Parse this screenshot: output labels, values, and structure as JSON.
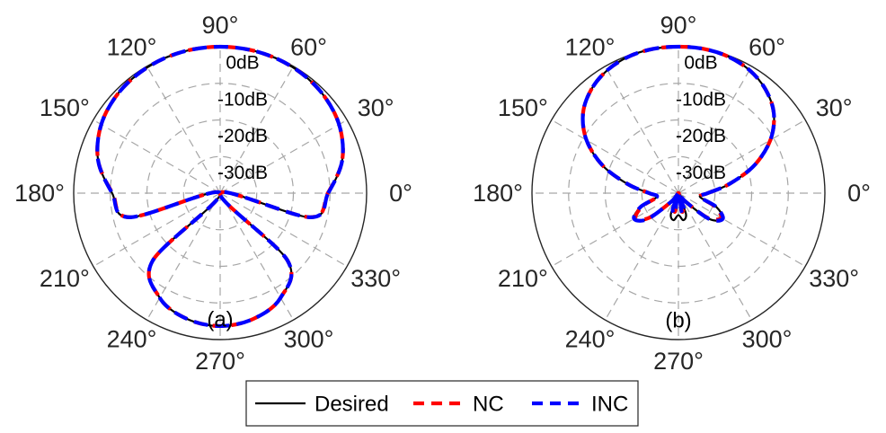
{
  "chart_data": [
    {
      "type": "polar",
      "panel_label": "(a)",
      "theta_unit": "degrees",
      "theta_ticks": [
        0,
        30,
        60,
        90,
        120,
        150,
        180,
        210,
        240,
        270,
        300,
        330
      ],
      "theta_tick_labels": [
        "0°",
        "30°",
        "60°",
        "90°",
        "120°",
        "150°",
        "180°",
        "210°",
        "240°",
        "270°",
        "300°",
        "330°"
      ],
      "r_unit": "dB",
      "rlim": [
        -40,
        0
      ],
      "r_ticks": [
        0,
        -10,
        -20,
        -30
      ],
      "r_tick_labels": [
        "0dB",
        "-10dB",
        "-20dB",
        "-30dB"
      ],
      "grid": true,
      "series": [
        {
          "name": "Desired",
          "theta": [
            0,
            15,
            30,
            45,
            60,
            75,
            90,
            105,
            120,
            135,
            150,
            165,
            180,
            195,
            210,
            225,
            240,
            255,
            270,
            285,
            300,
            315,
            330,
            345
          ],
          "values": [
            -10.5,
            -5.5,
            -2.5,
            -1.0,
            -0.3,
            -0.05,
            0,
            -0.05,
            -0.3,
            -1.0,
            -2.5,
            -5.5,
            -10.5,
            -14.5,
            -40,
            -14.0,
            -7.0,
            -4.5,
            -3.7,
            -4.5,
            -7.0,
            -14.0,
            -40,
            -14.5
          ]
        },
        {
          "name": "NC",
          "theta": [
            0,
            15,
            30,
            45,
            60,
            75,
            90,
            105,
            120,
            135,
            150,
            165,
            180,
            195,
            210,
            225,
            240,
            255,
            270,
            285,
            300,
            315,
            330,
            345
          ],
          "values": [
            -10.6,
            -5.5,
            -2.5,
            -1.0,
            -0.3,
            -0.05,
            0,
            -0.05,
            -0.3,
            -1.0,
            -2.5,
            -5.5,
            -10.6,
            -14.6,
            -40,
            -14.0,
            -7.0,
            -4.5,
            -3.7,
            -4.5,
            -7.0,
            -14.0,
            -40,
            -14.6
          ]
        },
        {
          "name": "INC",
          "theta": [
            0,
            15,
            30,
            45,
            60,
            75,
            90,
            105,
            120,
            135,
            150,
            165,
            180,
            195,
            210,
            225,
            240,
            255,
            270,
            285,
            300,
            315,
            330,
            345
          ],
          "values": [
            -10.5,
            -5.5,
            -2.5,
            -1.0,
            -0.3,
            -0.05,
            0,
            -0.05,
            -0.3,
            -1.0,
            -2.5,
            -5.5,
            -10.5,
            -14.5,
            -40,
            -14.0,
            -7.0,
            -4.5,
            -3.7,
            -4.5,
            -7.0,
            -14.0,
            -40,
            -14.5
          ]
        }
      ]
    },
    {
      "type": "polar",
      "panel_label": "(b)",
      "theta_unit": "degrees",
      "theta_ticks": [
        0,
        30,
        60,
        90,
        120,
        150,
        180,
        210,
        240,
        270,
        300,
        330
      ],
      "theta_tick_labels": [
        "0°",
        "30°",
        "60°",
        "90°",
        "120°",
        "150°",
        "180°",
        "210°",
        "240°",
        "270°",
        "300°",
        "330°"
      ],
      "r_unit": "dB",
      "rlim": [
        -40,
        0
      ],
      "r_ticks": [
        0,
        -10,
        -20,
        -30
      ],
      "r_tick_labels": [
        "0dB",
        "-10dB",
        "-20dB",
        "-30dB"
      ],
      "grid": true,
      "series": [
        {
          "name": "Desired",
          "theta": [
            0,
            10,
            20,
            30,
            40,
            50,
            60,
            70,
            80,
            90,
            100,
            110,
            120,
            130,
            140,
            150,
            160,
            170,
            180,
            190,
            200,
            210,
            220,
            230,
            240,
            250,
            260,
            270,
            280,
            290,
            300,
            310,
            320,
            330,
            340,
            350
          ],
          "values": [
            -32,
            -26,
            -18,
            -11,
            -6,
            -3,
            -1.2,
            -0.3,
            0,
            0,
            0,
            -0.3,
            -1.2,
            -3,
            -6,
            -11,
            -18,
            -26,
            -32,
            -34,
            -29,
            -26,
            -29,
            -37,
            -40,
            -34,
            -32.5,
            -34,
            -32.5,
            -34,
            -40,
            -37,
            -29,
            -26,
            -29,
            -34
          ]
        },
        {
          "name": "NC",
          "theta": [
            0,
            10,
            20,
            30,
            40,
            50,
            60,
            70,
            80,
            90,
            100,
            110,
            120,
            130,
            140,
            150,
            160,
            170,
            180,
            190,
            200,
            210,
            220,
            230,
            240,
            250,
            260,
            270,
            280,
            290,
            300,
            310,
            320,
            330,
            340,
            350
          ],
          "values": [
            -32,
            -26,
            -18,
            -11,
            -6,
            -3,
            -1.2,
            -0.3,
            0,
            0,
            0,
            -0.3,
            -1.2,
            -3,
            -6,
            -11,
            -18,
            -26,
            -32,
            -34,
            -29.5,
            -26.5,
            -29.5,
            -37,
            -40,
            -36,
            -35,
            -40,
            -35,
            -36,
            -40,
            -37,
            -29.5,
            -26.5,
            -29.5,
            -34
          ]
        },
        {
          "name": "INC",
          "theta": [
            0,
            10,
            20,
            30,
            40,
            50,
            60,
            70,
            80,
            90,
            100,
            110,
            120,
            130,
            140,
            150,
            160,
            170,
            180,
            190,
            200,
            210,
            220,
            230,
            240,
            250,
            260,
            270,
            280,
            290,
            300,
            310,
            320,
            330,
            340,
            350
          ],
          "values": [
            -32,
            -26,
            -18,
            -11,
            -6,
            -3,
            -1.2,
            -0.3,
            0,
            0,
            0,
            -0.3,
            -1.2,
            -3,
            -6,
            -11,
            -18,
            -26,
            -32,
            -34,
            -29,
            -26,
            -29,
            -37,
            -40,
            -35.5,
            -34.5,
            -40,
            -34.5,
            -35.5,
            -40,
            -37,
            -29,
            -26,
            -29,
            -34
          ]
        }
      ]
    }
  ],
  "legend": {
    "items": [
      {
        "label": "Desired",
        "color": "#000000",
        "style": "solid"
      },
      {
        "label": "NC",
        "color": "#ff0000",
        "style": "dashed"
      },
      {
        "label": "INC",
        "color": "#0000ff",
        "style": "dashed"
      }
    ],
    "placement": "bottom-center"
  },
  "colors": {
    "Desired": "#000000",
    "NC": "#ff0000",
    "INC": "#0000ff",
    "grid": "#a6a6a6",
    "outer_ring": "#262626"
  }
}
